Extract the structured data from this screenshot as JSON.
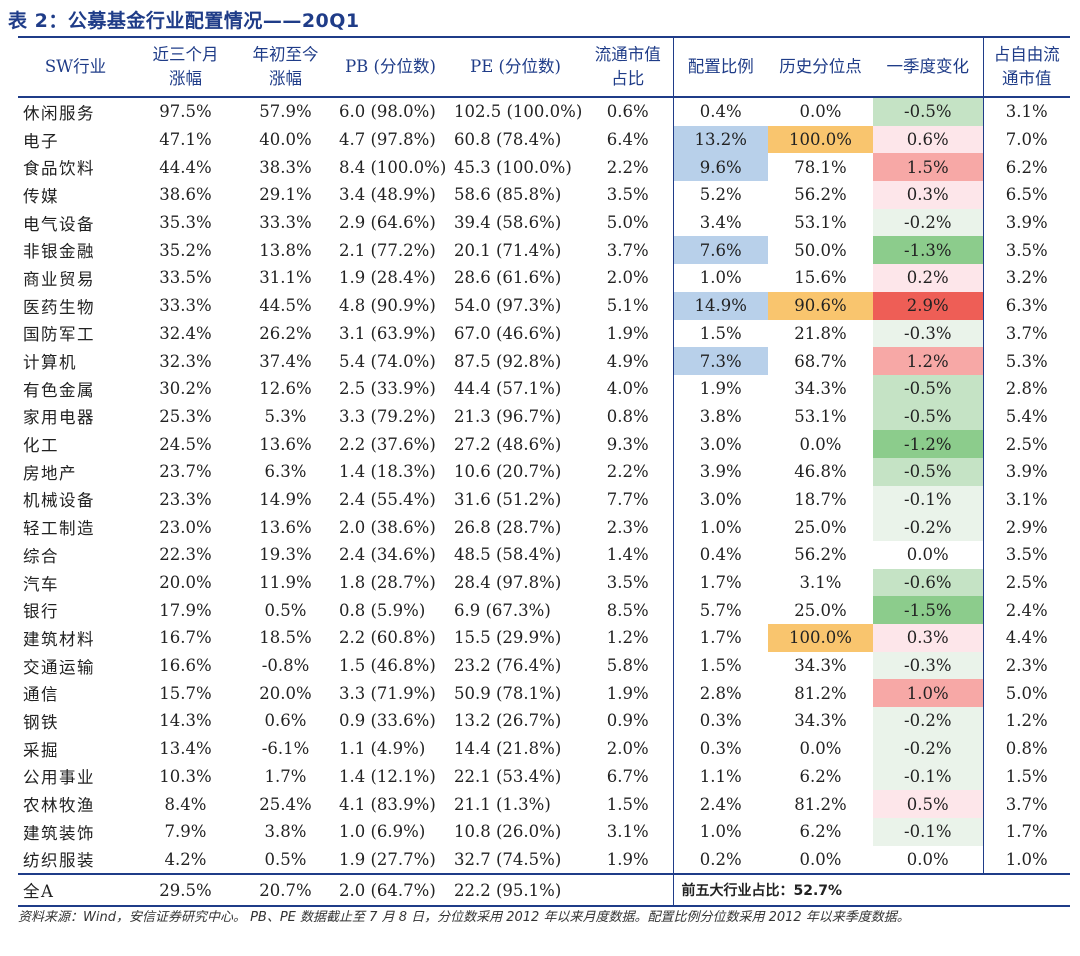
{
  "title": "表 2：公募基金行业配置情况——20Q1",
  "headers": {
    "industry": "SW行业",
    "three_month": [
      "近三个月",
      "涨幅"
    ],
    "ytd": [
      "年初至今",
      "涨幅"
    ],
    "pb": "PB (分位数)",
    "pe": "PE (分位数)",
    "float_mv": [
      "流通市值",
      "占比"
    ],
    "allocation": "配置比例",
    "hist_pct": "历史分位点",
    "q_change": "一季度变化",
    "free_float": [
      "占自由流",
      "通市值"
    ]
  },
  "colors": {
    "header_blue": "#1f3c88",
    "blue_fill": "#b8d0ea",
    "orange_fill": "#f9c56e",
    "green_1": "#eaf3ea",
    "green_2": "#c5e3c5",
    "green_3": "#8ccc8c",
    "red_1": "#fde6ea",
    "red_2": "#f7a8a6",
    "red_3": "#ee5e56"
  },
  "rows": [
    {
      "name": "休闲服务",
      "m3": "97.5%",
      "ytd": "57.9%",
      "pb": "6.0 (98.0%)",
      "pe": "102.5 (100.0%)",
      "float": "0.6%",
      "alloc": "0.4%",
      "hist": "0.0%",
      "chg": "-0.5%",
      "free": "3.1%"
    },
    {
      "name": "电子",
      "m3": "47.1%",
      "ytd": "40.0%",
      "pb": "4.7 (97.8%)",
      "pe": "60.8 (78.4%)",
      "float": "6.4%",
      "alloc": "13.2%",
      "hist": "100.0%",
      "chg": "0.6%",
      "free": "7.0%"
    },
    {
      "name": "食品饮料",
      "m3": "44.4%",
      "ytd": "38.3%",
      "pb": "8.4 (100.0%)",
      "pe": "45.3 (100.0%)",
      "float": "2.2%",
      "alloc": "9.6%",
      "hist": "78.1%",
      "chg": "1.5%",
      "free": "6.2%"
    },
    {
      "name": "传媒",
      "m3": "38.6%",
      "ytd": "29.1%",
      "pb": "3.4 (48.9%)",
      "pe": "58.6 (85.8%)",
      "float": "3.5%",
      "alloc": "5.2%",
      "hist": "56.2%",
      "chg": "0.3%",
      "free": "6.5%"
    },
    {
      "name": "电气设备",
      "m3": "35.3%",
      "ytd": "33.3%",
      "pb": "2.9 (64.6%)",
      "pe": "39.4 (58.6%)",
      "float": "5.0%",
      "alloc": "3.4%",
      "hist": "53.1%",
      "chg": "-0.2%",
      "free": "3.9%"
    },
    {
      "name": "非银金融",
      "m3": "35.2%",
      "ytd": "13.8%",
      "pb": "2.1 (77.2%)",
      "pe": "20.1 (71.4%)",
      "float": "3.7%",
      "alloc": "7.6%",
      "hist": "50.0%",
      "chg": "-1.3%",
      "free": "3.5%"
    },
    {
      "name": "商业贸易",
      "m3": "33.5%",
      "ytd": "31.1%",
      "pb": "1.9 (28.4%)",
      "pe": "28.6 (61.6%)",
      "float": "2.0%",
      "alloc": "1.0%",
      "hist": "15.6%",
      "chg": "0.2%",
      "free": "3.2%"
    },
    {
      "name": "医药生物",
      "m3": "33.3%",
      "ytd": "44.5%",
      "pb": "4.8 (90.9%)",
      "pe": "54.0 (97.3%)",
      "float": "5.1%",
      "alloc": "14.9%",
      "hist": "90.6%",
      "chg": "2.9%",
      "free": "6.3%"
    },
    {
      "name": "国防军工",
      "m3": "32.4%",
      "ytd": "26.2%",
      "pb": "3.1 (63.9%)",
      "pe": "67.0 (46.6%)",
      "float": "1.9%",
      "alloc": "1.5%",
      "hist": "21.8%",
      "chg": "-0.3%",
      "free": "3.7%"
    },
    {
      "name": "计算机",
      "m3": "32.3%",
      "ytd": "37.4%",
      "pb": "5.4 (74.0%)",
      "pe": "87.5 (92.8%)",
      "float": "4.9%",
      "alloc": "7.3%",
      "hist": "68.7%",
      "chg": "1.2%",
      "free": "5.3%"
    },
    {
      "name": "有色金属",
      "m3": "30.2%",
      "ytd": "12.6%",
      "pb": "2.5 (33.9%)",
      "pe": "44.4 (57.1%)",
      "float": "4.0%",
      "alloc": "1.9%",
      "hist": "34.3%",
      "chg": "-0.5%",
      "free": "2.8%"
    },
    {
      "name": "家用电器",
      "m3": "25.3%",
      "ytd": "5.3%",
      "pb": "3.3 (79.2%)",
      "pe": "21.3 (96.7%)",
      "float": "0.8%",
      "alloc": "3.8%",
      "hist": "53.1%",
      "chg": "-0.5%",
      "free": "5.4%"
    },
    {
      "name": "化工",
      "m3": "24.5%",
      "ytd": "13.6%",
      "pb": "2.2 (37.6%)",
      "pe": "27.2 (48.6%)",
      "float": "9.3%",
      "alloc": "3.0%",
      "hist": "0.0%",
      "chg": "-1.2%",
      "free": "2.5%"
    },
    {
      "name": "房地产",
      "m3": "23.7%",
      "ytd": "6.3%",
      "pb": "1.4 (18.3%)",
      "pe": "10.6 (20.7%)",
      "float": "2.2%",
      "alloc": "3.9%",
      "hist": "46.8%",
      "chg": "-0.5%",
      "free": "3.9%"
    },
    {
      "name": "机械设备",
      "m3": "23.3%",
      "ytd": "14.9%",
      "pb": "2.4 (55.4%)",
      "pe": "31.6 (51.2%)",
      "float": "7.7%",
      "alloc": "3.0%",
      "hist": "18.7%",
      "chg": "-0.1%",
      "free": "3.1%"
    },
    {
      "name": "轻工制造",
      "m3": "23.0%",
      "ytd": "13.6%",
      "pb": "2.0 (38.6%)",
      "pe": "26.8 (28.7%)",
      "float": "2.3%",
      "alloc": "1.0%",
      "hist": "25.0%",
      "chg": "-0.2%",
      "free": "2.9%"
    },
    {
      "name": "综合",
      "m3": "22.3%",
      "ytd": "19.3%",
      "pb": "2.4 (34.6%)",
      "pe": "48.5 (58.4%)",
      "float": "1.4%",
      "alloc": "0.4%",
      "hist": "56.2%",
      "chg": "0.0%",
      "free": "3.5%"
    },
    {
      "name": "汽车",
      "m3": "20.0%",
      "ytd": "11.9%",
      "pb": "1.8 (28.7%)",
      "pe": "28.4 (97.8%)",
      "float": "3.5%",
      "alloc": "1.7%",
      "hist": "3.1%",
      "chg": "-0.6%",
      "free": "2.5%"
    },
    {
      "name": "银行",
      "m3": "17.9%",
      "ytd": "0.5%",
      "pb": "0.8 (5.9%)",
      "pe": "6.9 (67.3%)",
      "float": "8.5%",
      "alloc": "5.7%",
      "hist": "25.0%",
      "chg": "-1.5%",
      "free": "2.4%"
    },
    {
      "name": "建筑材料",
      "m3": "16.7%",
      "ytd": "18.5%",
      "pb": "2.2 (60.8%)",
      "pe": "15.5 (29.9%)",
      "float": "1.2%",
      "alloc": "1.7%",
      "hist": "100.0%",
      "chg": "0.3%",
      "free": "4.4%"
    },
    {
      "name": "交通运输",
      "m3": "16.6%",
      "ytd": "-0.8%",
      "pb": "1.5 (46.8%)",
      "pe": "23.2 (76.4%)",
      "float": "5.8%",
      "alloc": "1.5%",
      "hist": "34.3%",
      "chg": "-0.3%",
      "free": "2.3%"
    },
    {
      "name": "通信",
      "m3": "15.7%",
      "ytd": "20.0%",
      "pb": "3.3 (71.9%)",
      "pe": "50.9 (78.1%)",
      "float": "1.9%",
      "alloc": "2.8%",
      "hist": "81.2%",
      "chg": "1.0%",
      "free": "5.0%"
    },
    {
      "name": "钢铁",
      "m3": "14.3%",
      "ytd": "0.6%",
      "pb": "0.9 (33.6%)",
      "pe": "13.2 (26.7%)",
      "float": "0.9%",
      "alloc": "0.3%",
      "hist": "34.3%",
      "chg": "-0.2%",
      "free": "1.2%"
    },
    {
      "name": "采掘",
      "m3": "13.4%",
      "ytd": "-6.1%",
      "pb": "1.1 (4.9%)",
      "pe": "14.4 (21.8%)",
      "float": "2.0%",
      "alloc": "0.3%",
      "hist": "0.0%",
      "chg": "-0.2%",
      "free": "0.8%"
    },
    {
      "name": "公用事业",
      "m3": "10.3%",
      "ytd": "1.7%",
      "pb": "1.4 (12.1%)",
      "pe": "22.1 (53.4%)",
      "float": "6.7%",
      "alloc": "1.1%",
      "hist": "6.2%",
      "chg": "-0.1%",
      "free": "1.5%"
    },
    {
      "name": "农林牧渔",
      "m3": "8.4%",
      "ytd": "25.4%",
      "pb": "4.1 (83.9%)",
      "pe": "21.1 (1.3%)",
      "float": "1.5%",
      "alloc": "2.4%",
      "hist": "81.2%",
      "chg": "0.5%",
      "free": "3.7%"
    },
    {
      "name": "建筑装饰",
      "m3": "7.9%",
      "ytd": "3.8%",
      "pb": "1.0 (6.9%)",
      "pe": "10.8 (26.0%)",
      "float": "3.1%",
      "alloc": "1.0%",
      "hist": "6.2%",
      "chg": "-0.1%",
      "free": "1.7%"
    },
    {
      "name": "纺织服装",
      "m3": "4.2%",
      "ytd": "0.5%",
      "pb": "1.9 (27.7%)",
      "pe": "32.7 (74.5%)",
      "float": "1.9%",
      "alloc": "0.2%",
      "hist": "0.0%",
      "chg": "0.0%",
      "free": "1.0%"
    }
  ],
  "total": {
    "name": "全A",
    "m3": "29.5%",
    "ytd": "20.7%",
    "pb": "2.0 (64.7%)",
    "pe": "22.2 (95.1%)",
    "note": "前五大行业占比：52.7%"
  },
  "footnote": "资料来源：Wind，安信证券研究中心。 PB、PE 数据截止至 7 月 8 日，分位数采用 2012 年以来月度数据。配置比例分位数采用 2012 年以来季度数据。"
}
